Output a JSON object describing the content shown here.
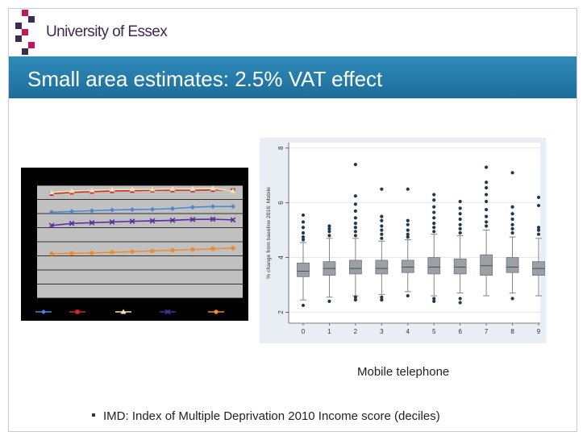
{
  "header": {
    "logo_text": "University of Essex",
    "logo_colors": [
      "#c2185b",
      "#3d2a55"
    ],
    "title": "Small area estimates: 2.5% VAT effect",
    "bar_color": "#2379a8"
  },
  "caption": "Mobile telephone",
  "bullet": "IMD: Index of Multiple Deprivation 2010 Income score (deciles)",
  "chart_data": [
    {
      "type": "line",
      "title": "",
      "xlabel": "",
      "ylabel": "",
      "x": [
        1,
        2,
        3,
        4,
        5,
        6,
        7,
        8,
        9,
        10
      ],
      "ylim": [
        0,
        8
      ],
      "grid": true,
      "legend_position": "bottom",
      "series": [
        {
          "color": "#4a86d6",
          "marker": "diamond",
          "values": [
            6.1,
            6.15,
            6.2,
            6.25,
            6.28,
            6.3,
            6.35,
            6.45,
            6.5,
            6.5
          ]
        },
        {
          "color": "#cc2a2a",
          "marker": "square",
          "values": [
            7.4,
            7.5,
            7.55,
            7.6,
            7.62,
            7.65,
            7.65,
            7.65,
            7.68,
            7.65
          ]
        },
        {
          "color": "#f1e6b2",
          "marker": "triangle",
          "values": [
            7.5,
            7.6,
            7.65,
            7.7,
            7.72,
            7.72,
            7.75,
            7.75,
            7.78,
            7.6
          ]
        },
        {
          "color": "#5a2a9e",
          "marker": "x",
          "values": [
            5.15,
            5.3,
            5.35,
            5.4,
            5.45,
            5.48,
            5.52,
            5.58,
            5.6,
            5.55
          ]
        },
        {
          "color": "#f08a32",
          "marker": "circle",
          "values": [
            3.15,
            3.18,
            3.2,
            3.25,
            3.3,
            3.35,
            3.4,
            3.45,
            3.5,
            3.55
          ]
        }
      ]
    },
    {
      "type": "box",
      "title": "",
      "xlabel": "",
      "ylabel": "% change from baseline 2016: Mobile",
      "categories": [
        "0",
        "1",
        "2",
        "3",
        "4",
        "5",
        "6",
        "7",
        "8",
        "9"
      ],
      "yticks": [
        2,
        4,
        6,
        8
      ],
      "ylim": [
        1.6,
        8.2
      ],
      "box_color": "#9aa0a6",
      "stats": [
        {
          "min": 2.45,
          "q1": 3.3,
          "median": 3.5,
          "q3": 3.8,
          "max": 4.55,
          "outliers": [
            2.25,
            4.65,
            4.75,
            4.9,
            5.1,
            5.3,
            5.55
          ]
        },
        {
          "min": 2.55,
          "q1": 3.35,
          "median": 3.6,
          "q3": 3.85,
          "max": 4.7,
          "outliers": [
            2.4,
            4.8,
            4.95,
            5.05,
            5.15
          ]
        },
        {
          "min": 2.6,
          "q1": 3.4,
          "median": 3.6,
          "q3": 3.9,
          "max": 4.7,
          "outliers": [
            2.45,
            2.55,
            4.8,
            4.95,
            5.1,
            5.25,
            5.45,
            5.7,
            5.95,
            6.25,
            7.4
          ]
        },
        {
          "min": 2.65,
          "q1": 3.4,
          "median": 3.6,
          "q3": 3.9,
          "max": 4.6,
          "outliers": [
            2.45,
            2.55,
            4.7,
            4.85,
            5.0,
            5.15,
            5.35,
            5.5,
            6.5
          ]
        },
        {
          "min": 2.75,
          "q1": 3.45,
          "median": 3.65,
          "q3": 3.9,
          "max": 4.65,
          "outliers": [
            2.6,
            4.75,
            4.85,
            5.0,
            5.2,
            5.35,
            6.5
          ]
        },
        {
          "min": 2.6,
          "q1": 3.4,
          "median": 3.65,
          "q3": 4.0,
          "max": 4.85,
          "outliers": [
            2.4,
            2.5,
            4.95,
            5.1,
            5.25,
            5.45,
            5.65,
            5.85,
            6.1,
            6.3
          ]
        },
        {
          "min": 2.7,
          "q1": 3.4,
          "median": 3.65,
          "q3": 3.95,
          "max": 4.8,
          "outliers": [
            2.35,
            2.5,
            4.9,
            5.05,
            5.2,
            5.4,
            5.6,
            5.8,
            6.05
          ]
        },
        {
          "min": 2.6,
          "q1": 3.35,
          "median": 3.7,
          "q3": 4.1,
          "max": 5.0,
          "outliers": [
            5.15,
            5.3,
            5.5,
            5.75,
            6.05,
            6.3,
            6.55,
            6.75,
            7.3
          ]
        },
        {
          "min": 2.7,
          "q1": 3.45,
          "median": 3.65,
          "q3": 4.0,
          "max": 4.75,
          "outliers": [
            2.5,
            4.9,
            5.05,
            5.2,
            5.4,
            5.6,
            5.85,
            7.1
          ]
        },
        {
          "min": 2.6,
          "q1": 3.35,
          "median": 3.6,
          "q3": 3.85,
          "max": 4.7,
          "outliers": [
            4.85,
            5.0,
            5.1,
            5.9,
            6.2
          ]
        }
      ]
    }
  ]
}
